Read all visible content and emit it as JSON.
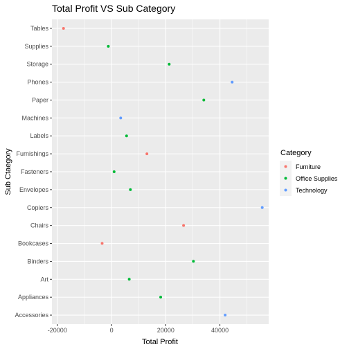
{
  "chart_data": {
    "type": "scatter",
    "title": "Total Profit VS Sub Category",
    "xlabel": "Total Profit",
    "ylabel": "Sub Ctaegory",
    "xlim": [
      -22000,
      58000
    ],
    "x_ticks": [
      -20000,
      0,
      20000,
      40000
    ],
    "x_tick_labels": [
      "-20000",
      "0",
      "20000",
      "40000"
    ],
    "categories": [
      "Accessories",
      "Appliances",
      "Art",
      "Binders",
      "Bookcases",
      "Chairs",
      "Copiers",
      "Envelopes",
      "Fasteners",
      "Furnishings",
      "Labels",
      "Machines",
      "Paper",
      "Phones",
      "Storage",
      "Supplies",
      "Tables"
    ],
    "grid": true,
    "background": "#ebebeb",
    "legend": {
      "title": "Category",
      "position": "right",
      "entries": [
        {
          "label": "Furniture",
          "color": "#F8766D"
        },
        {
          "label": "Office Supplies",
          "color": "#00BA38"
        },
        {
          "label": "Technology",
          "color": "#619CFF"
        }
      ]
    },
    "points": [
      {
        "category": "Accessories",
        "x": 41937,
        "group": "Technology"
      },
      {
        "category": "Appliances",
        "x": 18138,
        "group": "Office Supplies"
      },
      {
        "category": "Art",
        "x": 6528,
        "group": "Office Supplies"
      },
      {
        "category": "Binders",
        "x": 30222,
        "group": "Office Supplies"
      },
      {
        "category": "Bookcases",
        "x": -3473,
        "group": "Furniture"
      },
      {
        "category": "Chairs",
        "x": 26590,
        "group": "Furniture"
      },
      {
        "category": "Copiers",
        "x": 55618,
        "group": "Technology"
      },
      {
        "category": "Envelopes",
        "x": 6964,
        "group": "Office Supplies"
      },
      {
        "category": "Fasteners",
        "x": 950,
        "group": "Office Supplies"
      },
      {
        "category": "Furnishings",
        "x": 13059,
        "group": "Furniture"
      },
      {
        "category": "Labels",
        "x": 5546,
        "group": "Office Supplies"
      },
      {
        "category": "Machines",
        "x": 3385,
        "group": "Technology"
      },
      {
        "category": "Paper",
        "x": 34054,
        "group": "Office Supplies"
      },
      {
        "category": "Phones",
        "x": 44516,
        "group": "Technology"
      },
      {
        "category": "Storage",
        "x": 21279,
        "group": "Office Supplies"
      },
      {
        "category": "Supplies",
        "x": -1189,
        "group": "Office Supplies"
      },
      {
        "category": "Tables",
        "x": -17725,
        "group": "Furniture"
      }
    ]
  }
}
